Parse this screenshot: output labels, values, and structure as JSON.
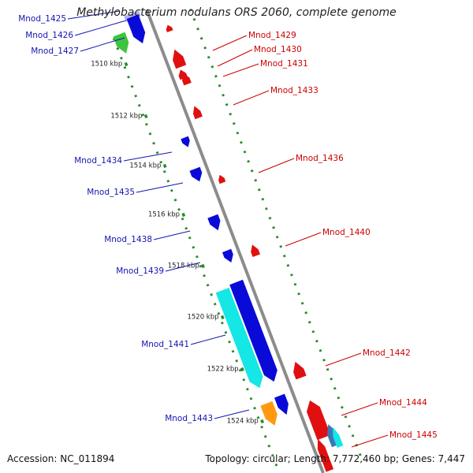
{
  "title": "Methylobacterium nodulans ORS 2060, complete genome",
  "footer": {
    "accession": "Accession: NC_011894",
    "summary": "Topology: circular; Length: 7,772,460 bp; Genes: 7,447"
  },
  "colors": {
    "backbone": "#8c8c8c",
    "tick": "#2a8a2a",
    "forward_label": "#1515b0",
    "reverse_label": "#cc0000",
    "blue": "#0a0ad8",
    "red": "#e01010",
    "cyan": "#15e6e6",
    "green": "#3ec43e",
    "orange": "#ff9a10",
    "light_blue": "#b0b0ff"
  },
  "ticks": [
    {
      "label": "1510 kbp"
    },
    {
      "label": "1512 kbp"
    },
    {
      "label": "1514 kbp"
    },
    {
      "label": "1516 kbp"
    },
    {
      "label": "1518 kbp"
    },
    {
      "label": "1520 kbp"
    },
    {
      "label": "1522 kbp"
    },
    {
      "label": "1524 kbp"
    }
  ],
  "genes_left": [
    {
      "name": "Mnod_1425"
    },
    {
      "name": "Mnod_1426"
    },
    {
      "name": "Mnod_1427"
    },
    {
      "name": "Mnod_1434"
    },
    {
      "name": "Mnod_1435"
    },
    {
      "name": "Mnod_1438"
    },
    {
      "name": "Mnod_1439"
    },
    {
      "name": "Mnod_1441"
    },
    {
      "name": "Mnod_1443"
    }
  ],
  "genes_right": [
    {
      "name": "Mnod_1429"
    },
    {
      "name": "Mnod_1430"
    },
    {
      "name": "Mnod_1431"
    },
    {
      "name": "Mnod_1433"
    },
    {
      "name": "Mnod_1436"
    },
    {
      "name": "Mnod_1440"
    },
    {
      "name": "Mnod_1442"
    },
    {
      "name": "Mnod_1444"
    },
    {
      "name": "Mnod_1445"
    }
  ]
}
